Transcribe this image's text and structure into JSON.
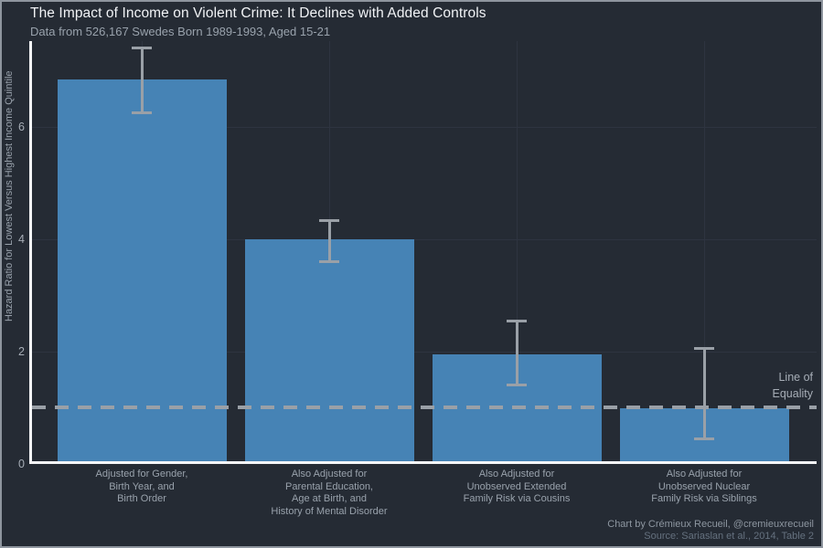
{
  "header": {
    "title": "The Impact of Income on Violent Crime: It Declines with Added Controls",
    "subtitle": "Data from 526,167 Swedes Born 1989-1993, Aged 15-21"
  },
  "chart_data": {
    "type": "bar",
    "title": "The Impact of Income on Violent Crime: It Declines with Added Controls",
    "subtitle": "Data from 526,167 Swedes Born 1989-1993, Aged 15-21",
    "ylabel": "Hazard Ratio for Lowest Versus Highest Income Quintile",
    "xlabel": "",
    "ylim": [
      0,
      7.5
    ],
    "yticks": [
      0,
      2,
      4,
      6
    ],
    "grid": true,
    "categories": [
      "Adjusted for Gender,\nBirth Year, and\nBirth Order",
      "Also Adjusted for\nParental Education,\nAge at Birth, and\nHistory of Mental Disorder",
      "Also Adjusted for\nUnobserved Extended\nFamily Risk via Cousins",
      "Also Adjusted for\nUnobserved Nuclear\nFamily Risk via Siblings"
    ],
    "values": [
      6.8,
      3.95,
      1.9,
      0.95
    ],
    "error_low": [
      6.25,
      3.6,
      1.4,
      0.45
    ],
    "error_high": [
      7.4,
      4.33,
      2.55,
      2.05
    ],
    "reference_line": {
      "value": 1,
      "label": [
        "Line of",
        "Equality"
      ]
    }
  },
  "footer": {
    "credit": "Chart by Crémieux Recueil, @cremieuxrecueil",
    "source": "Source: Sariaslan et al., 2014, Table 2"
  },
  "colors": {
    "background": "#252b34",
    "frame_border": "#8e959e",
    "bar_fill": "#4683b5",
    "axis_line": "#f5f6f8",
    "gridline": "#2e3440",
    "error_and_dash": "#9aa0a7",
    "title_text": "#f1f3f6",
    "muted_text": "#99a2ac"
  }
}
